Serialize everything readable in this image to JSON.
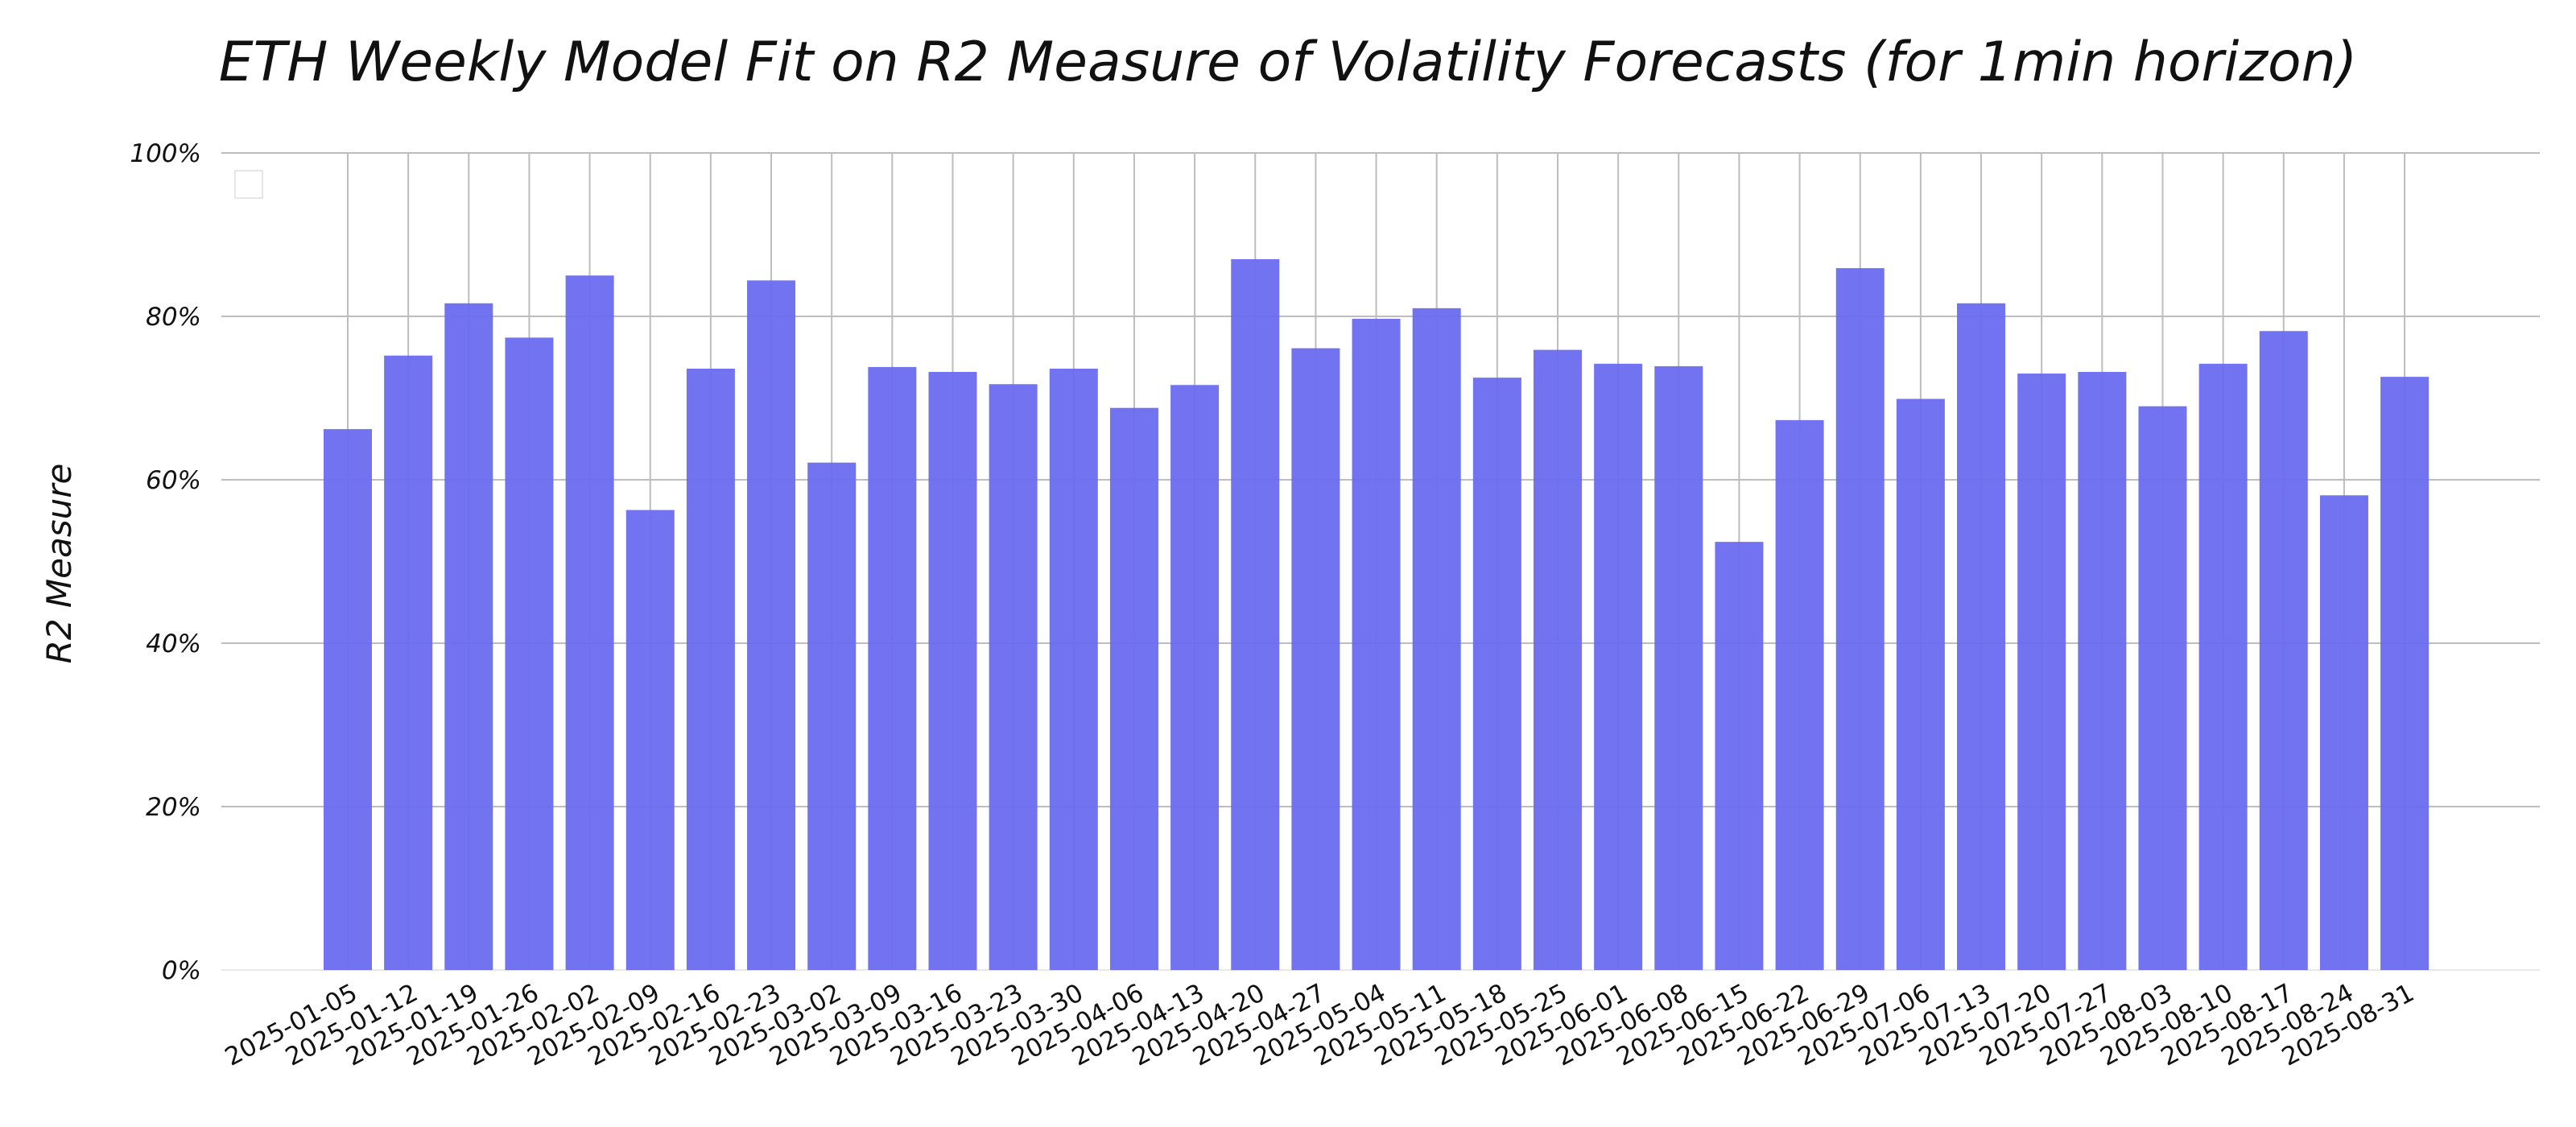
{
  "chart_data": {
    "type": "bar",
    "title": "ETH Weekly Model Fit on R2 Measure of Volatility Forecasts (for 1min horizon)",
    "ylabel": "R2 Measure",
    "xlabel": "",
    "ylim": [
      0,
      1
    ],
    "y_tick_values": [
      0,
      0.2,
      0.4,
      0.6,
      0.8,
      1.0
    ],
    "y_tick_labels": [
      "0%",
      "20%",
      "40%",
      "60%",
      "80%",
      "100%"
    ],
    "grid": true,
    "bar_color": "#6a6cf0",
    "categories": [
      "2025-01-05",
      "2025-01-12",
      "2025-01-19",
      "2025-01-26",
      "2025-02-02",
      "2025-02-09",
      "2025-02-16",
      "2025-02-23",
      "2025-03-02",
      "2025-03-09",
      "2025-03-16",
      "2025-03-23",
      "2025-03-30",
      "2025-04-06",
      "2025-04-13",
      "2025-04-20",
      "2025-04-27",
      "2025-05-04",
      "2025-05-11",
      "2025-05-18",
      "2025-05-25",
      "2025-06-01",
      "2025-06-08",
      "2025-06-15",
      "2025-06-22",
      "2025-06-29",
      "2025-07-06",
      "2025-07-13",
      "2025-07-20",
      "2025-07-27",
      "2025-08-03",
      "2025-08-10",
      "2025-08-17",
      "2025-08-24",
      "2025-08-31"
    ],
    "values": [
      0.662,
      0.752,
      0.816,
      0.774,
      0.85,
      0.563,
      0.736,
      0.844,
      0.621,
      0.738,
      0.732,
      0.717,
      0.736,
      0.688,
      0.716,
      0.87,
      0.761,
      0.797,
      0.81,
      0.725,
      0.759,
      0.742,
      0.739,
      0.524,
      0.673,
      0.859,
      0.699,
      0.816,
      0.73,
      0.732,
      0.69,
      0.742,
      0.782,
      0.581,
      0.726
    ]
  }
}
